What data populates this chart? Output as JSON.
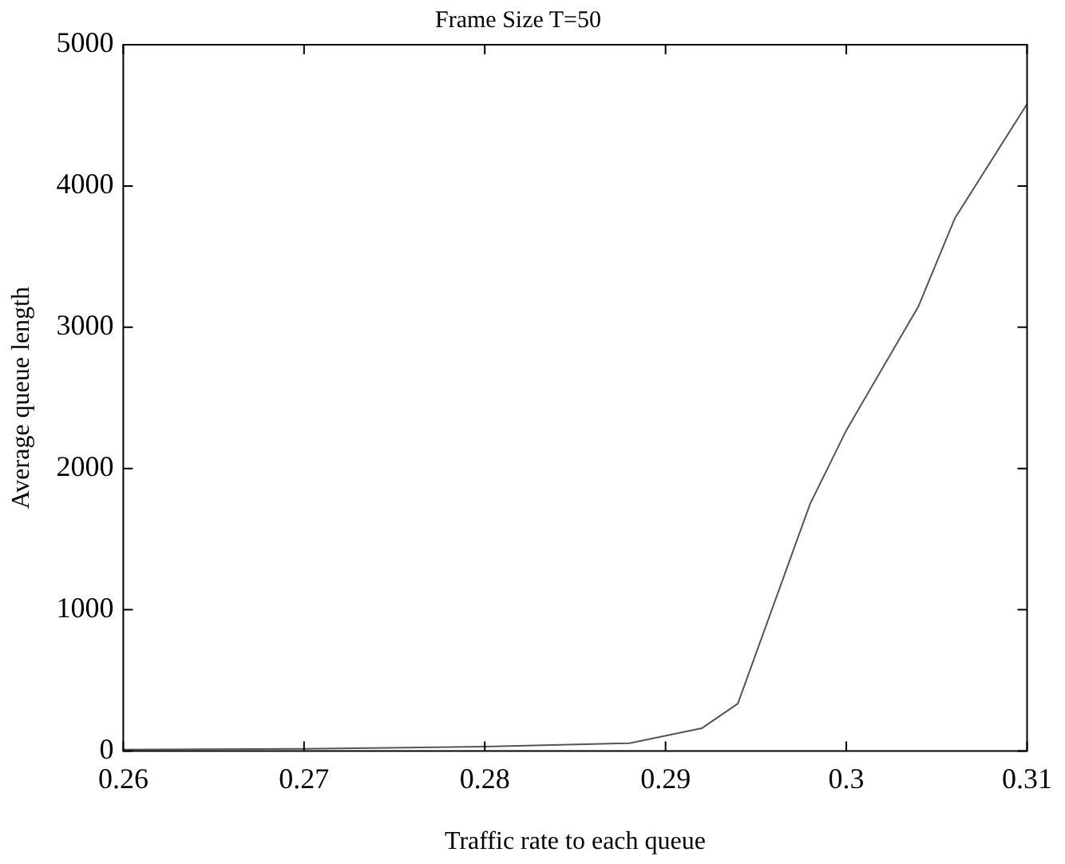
{
  "chart_data": {
    "type": "line",
    "title": "Frame Size T=50",
    "xlabel": "Traffic rate to each queue",
    "ylabel": "Average queue length",
    "x": [
      0.26,
      0.27,
      0.28,
      0.288,
      0.292,
      0.294,
      0.298,
      0.3,
      0.304,
      0.306,
      0.31
    ],
    "series": [
      {
        "color": "#555555",
        "values": [
          10,
          15,
          30,
          55,
          160,
          335,
          1750,
          2270,
          3150,
          3770,
          4580
        ]
      }
    ],
    "xlim": [
      0.26,
      0.31
    ],
    "xticks": [
      0.26,
      0.27,
      0.28,
      0.29,
      0.3,
      0.31
    ],
    "ylim": [
      0,
      5000
    ],
    "yticks": [
      0,
      1000,
      2000,
      3000,
      4000,
      5000
    ],
    "grid": false,
    "legend": false,
    "marker": "none",
    "line_style": "solid"
  }
}
